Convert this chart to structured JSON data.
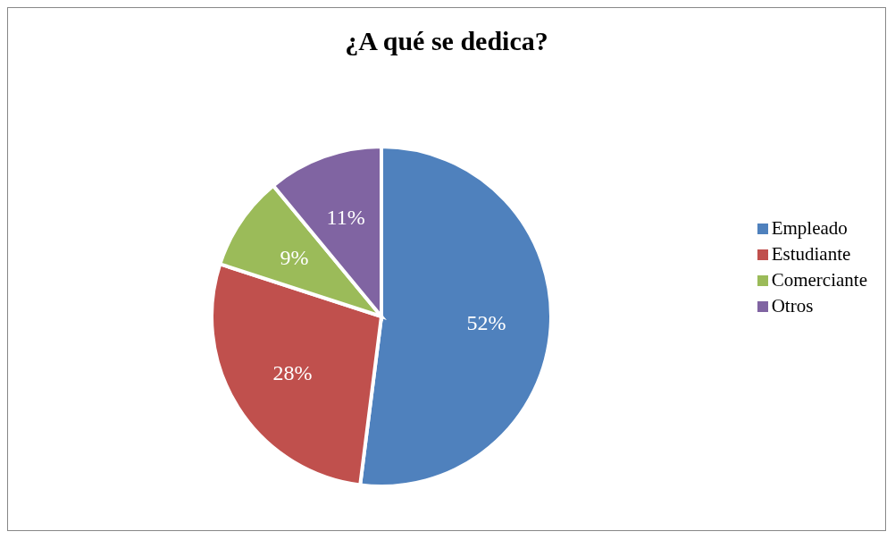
{
  "chart_data": {
    "type": "pie",
    "title": "¿A qué se dedica?",
    "categories": [
      "Empleado",
      "Estudiante",
      "Comerciante",
      "Otros"
    ],
    "values": [
      52,
      28,
      9,
      11
    ],
    "value_labels": [
      "52%",
      "28%",
      "9%",
      "11%"
    ],
    "colors": [
      "#4f81bd",
      "#c0504d",
      "#9bbb59",
      "#8064a2"
    ],
    "legend": "right"
  }
}
